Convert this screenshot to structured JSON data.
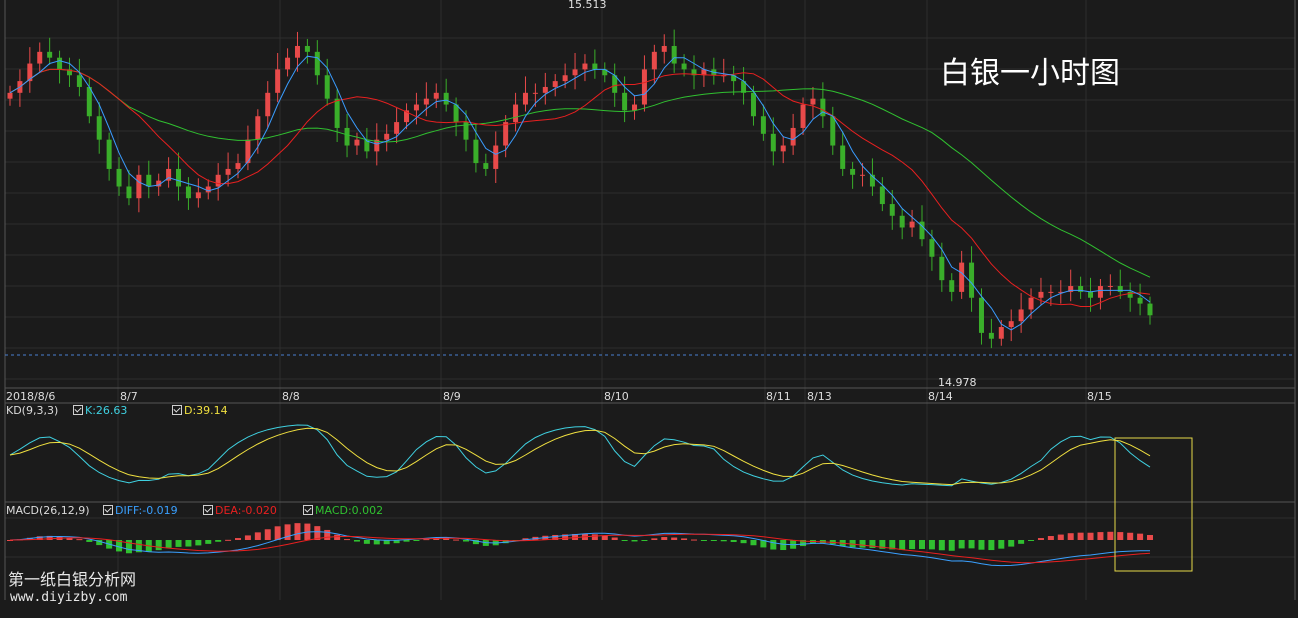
{
  "title": "白银一小时图",
  "price_pane": {
    "high_label": "15.513",
    "low_label": "14.978",
    "date_labels": [
      "2018/8/6",
      "8/7",
      "8/8",
      "8/9",
      "8/10",
      "8/11",
      "8/13",
      "8/14",
      "8/15"
    ]
  },
  "kd_pane": {
    "name": "KD(9,3,3)",
    "k_label": "K:26.63",
    "d_label": "D:39.14",
    "k_color": "#3fd0e0",
    "d_color": "#f0e040"
  },
  "macd_pane": {
    "name": "MACD(26,12,9)",
    "diff_label": "DIFF:-0.019",
    "dea_label": "DEA:-0.020",
    "macd_label": "MACD:0.002",
    "diff_color": "#3aa0ff",
    "dea_color": "#e82020",
    "macd_color": "#30c030"
  },
  "watermark": {
    "name": "第一纸白银分析网",
    "url": "www.diyizby.com"
  },
  "colors": {
    "up_candle": "#e84a4a",
    "down_candle": "#3aae2a",
    "ma_fast": "#3a9cff",
    "ma_mid": "#e82020",
    "ma_slow": "#30c030",
    "grid": "#333333",
    "highlight_box": "#e6d84a"
  },
  "chart_data": {
    "type": "candlestick",
    "title": "白银一小时图",
    "price_range": [
      14.93,
      15.55
    ],
    "high": 15.513,
    "low": 14.978,
    "date_labels": [
      "2018/8/6",
      "8/7",
      "8/8",
      "8/9",
      "8/10",
      "8/11",
      "8/13",
      "8/14",
      "8/15"
    ],
    "close": [
      15.4,
      15.42,
      15.45,
      15.47,
      15.46,
      15.44,
      15.43,
      15.41,
      15.36,
      15.32,
      15.27,
      15.24,
      15.22,
      15.26,
      15.24,
      15.25,
      15.27,
      15.24,
      15.22,
      15.23,
      15.24,
      15.26,
      15.27,
      15.28,
      15.32,
      15.36,
      15.4,
      15.44,
      15.46,
      15.48,
      15.47,
      15.43,
      15.39,
      15.34,
      15.31,
      15.32,
      15.3,
      15.32,
      15.33,
      15.35,
      15.37,
      15.38,
      15.39,
      15.4,
      15.38,
      15.35,
      15.32,
      15.28,
      15.27,
      15.31,
      15.35,
      15.38,
      15.4,
      15.4,
      15.41,
      15.42,
      15.43,
      15.44,
      15.45,
      15.44,
      15.43,
      15.4,
      15.37,
      15.38,
      15.44,
      15.47,
      15.48,
      15.45,
      15.44,
      15.43,
      15.44,
      15.43,
      15.43,
      15.42,
      15.4,
      15.36,
      15.33,
      15.3,
      15.31,
      15.34,
      15.38,
      15.39,
      15.36,
      15.31,
      15.27,
      15.26,
      15.26,
      15.24,
      15.21,
      15.19,
      15.17,
      15.18,
      15.15,
      15.12,
      15.08,
      15.06,
      15.11,
      15.05,
      14.99,
      14.98,
      15.0,
      15.01,
      15.03,
      15.05,
      15.06,
      15.06,
      15.06,
      15.07,
      15.06,
      15.05,
      15.07,
      15.07,
      15.06,
      15.05,
      15.04,
      15.02
    ],
    "kd": {
      "k_last": 26.63,
      "d_last": 39.14
    },
    "macd": {
      "diff_last": -0.019,
      "dea_last": -0.02,
      "macd_last": 0.002
    }
  }
}
